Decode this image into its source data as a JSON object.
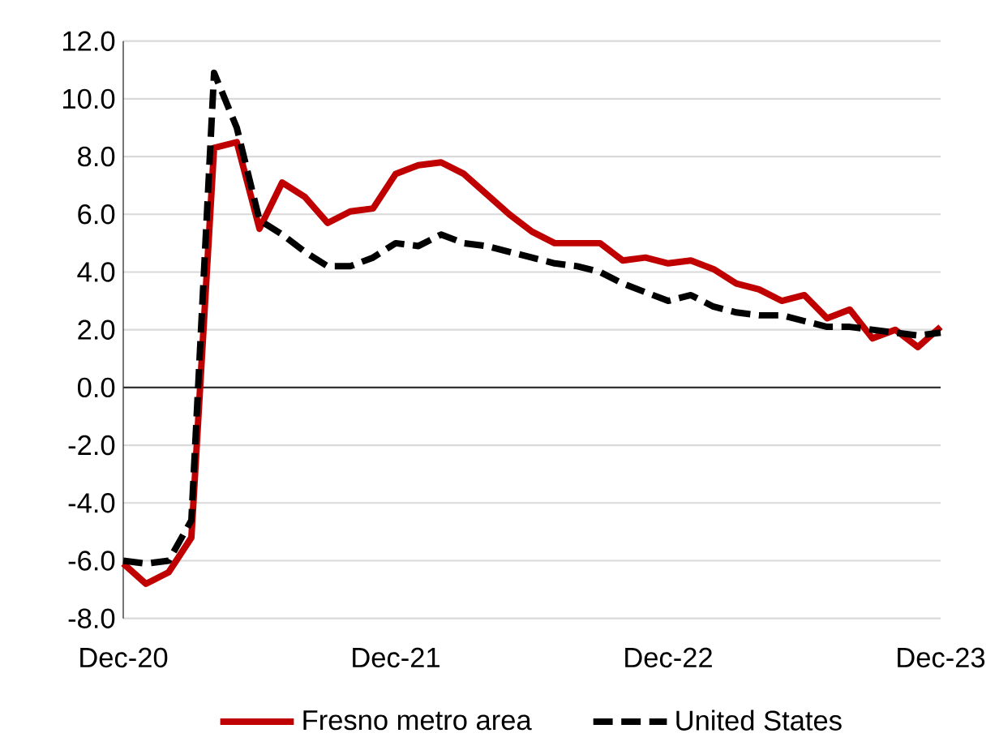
{
  "chart_data": {
    "type": "line",
    "categories": [
      "Dec-20",
      null,
      null,
      null,
      null,
      null,
      null,
      null,
      null,
      null,
      null,
      null,
      "Dec-21",
      null,
      null,
      null,
      null,
      null,
      null,
      null,
      null,
      null,
      null,
      null,
      "Dec-22",
      null,
      null,
      null,
      null,
      null,
      null,
      null,
      null,
      null,
      null,
      null,
      "Dec-23"
    ],
    "series": [
      {
        "name": "Fresno metro area",
        "color": "#c00000",
        "line_style": "solid",
        "values": [
          -6.1,
          -6.8,
          -6.4,
          -5.2,
          8.3,
          8.5,
          5.5,
          7.1,
          6.6,
          5.7,
          6.1,
          6.2,
          7.4,
          7.7,
          7.8,
          7.4,
          6.7,
          6.0,
          5.4,
          5.0,
          5.0,
          5.0,
          4.4,
          4.5,
          4.3,
          4.4,
          4.1,
          3.6,
          3.4,
          3.0,
          3.2,
          2.4,
          2.7,
          1.7,
          2.0,
          1.4,
          2.1
        ]
      },
      {
        "name": "United States",
        "color": "#000000",
        "line_style": "dashed",
        "values": [
          -6.0,
          -6.1,
          -6.0,
          -4.6,
          10.9,
          9.0,
          5.8,
          5.3,
          4.7,
          4.2,
          4.2,
          4.5,
          5.0,
          4.9,
          5.3,
          5.0,
          4.9,
          4.7,
          4.5,
          4.3,
          4.2,
          4.0,
          3.6,
          3.3,
          3.0,
          3.2,
          2.8,
          2.6,
          2.5,
          2.5,
          2.3,
          2.1,
          2.1,
          2.0,
          1.9,
          1.8,
          1.9
        ]
      }
    ],
    "ylim": [
      -8,
      12
    ],
    "yticks": [
      {
        "value": -8,
        "label": "-8.0"
      },
      {
        "value": -6,
        "label": "-6.0"
      },
      {
        "value": -4,
        "label": "-4.0"
      },
      {
        "value": -2,
        "label": "-2.0"
      },
      {
        "value": 0,
        "label": "0.0"
      },
      {
        "value": 2,
        "label": "2.0"
      },
      {
        "value": 4,
        "label": "4.0"
      },
      {
        "value": 6,
        "label": "6.0"
      },
      {
        "value": 8,
        "label": "8.0"
      },
      {
        "value": 10,
        "label": "10.0"
      },
      {
        "value": 12,
        "label": "12.0"
      }
    ],
    "grid": "y",
    "legend": "bottom",
    "marker": "none"
  }
}
